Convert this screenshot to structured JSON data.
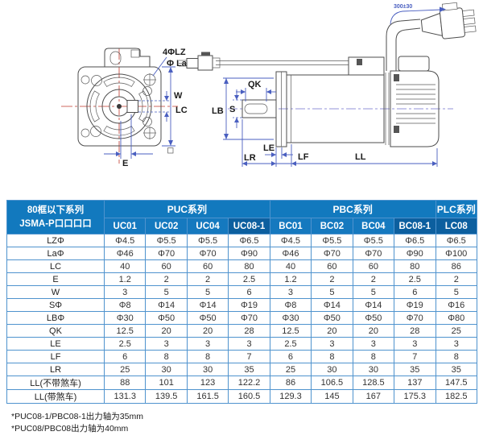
{
  "drawing": {
    "labels": {
      "bolt_holes": "4ΦLZ",
      "la": "Φ La",
      "w": "W",
      "lc": "LC",
      "e": "E",
      "qk": "QK",
      "s": "S",
      "lb": "LB",
      "le": "LE",
      "lr": "LR",
      "lf": "LF",
      "ll": "LL",
      "cable_length": "300±30"
    }
  },
  "table": {
    "corner": {
      "line1": "80框以下系列",
      "line2": "JSMA-P口口口口"
    },
    "groups": [
      {
        "label": "PUC系列",
        "span": 4
      },
      {
        "label": "PBC系列",
        "span": 4
      },
      {
        "label": "PLC系列",
        "span": 1
      }
    ],
    "columns": [
      {
        "id": "UC01",
        "highlight": false
      },
      {
        "id": "UC02",
        "highlight": false
      },
      {
        "id": "UC04",
        "highlight": false
      },
      {
        "id": "UC08-1",
        "highlight": true
      },
      {
        "id": "BC01",
        "highlight": false
      },
      {
        "id": "BC02",
        "highlight": false
      },
      {
        "id": "BC04",
        "highlight": false
      },
      {
        "id": "BC08-1",
        "highlight": true
      },
      {
        "id": "LC08",
        "highlight": true
      }
    ],
    "rows": [
      {
        "label": "LZΦ",
        "values": [
          "Φ4.5",
          "Φ5.5",
          "Φ5.5",
          "Φ6.5",
          "Φ4.5",
          "Φ5.5",
          "Φ5.5",
          "Φ6.5",
          "Φ6.5"
        ]
      },
      {
        "label": "LaΦ",
        "values": [
          "Φ46",
          "Φ70",
          "Φ70",
          "Φ90",
          "Φ46",
          "Φ70",
          "Φ70",
          "Φ90",
          "Φ100"
        ]
      },
      {
        "label": "LC",
        "values": [
          "40",
          "60",
          "60",
          "80",
          "40",
          "60",
          "60",
          "80",
          "86"
        ]
      },
      {
        "label": "E",
        "values": [
          "1.2",
          "2",
          "2",
          "2.5",
          "1.2",
          "2",
          "2",
          "2.5",
          "2"
        ]
      },
      {
        "label": "W",
        "values": [
          "3",
          "5",
          "5",
          "6",
          "3",
          "5",
          "5",
          "6",
          "5"
        ]
      },
      {
        "label": "SΦ",
        "values": [
          "Φ8",
          "Φ14",
          "Φ14",
          "Φ19",
          "Φ8",
          "Φ14",
          "Φ14",
          "Φ19",
          "Φ16"
        ]
      },
      {
        "label": "LBΦ",
        "values": [
          "Φ30",
          "Φ50",
          "Φ50",
          "Φ70",
          "Φ30",
          "Φ50",
          "Φ50",
          "Φ70",
          "Φ80"
        ]
      },
      {
        "label": "QK",
        "values": [
          "12.5",
          "20",
          "20",
          "28",
          "12.5",
          "20",
          "20",
          "28",
          "25"
        ]
      },
      {
        "label": "LE",
        "values": [
          "2.5",
          "3",
          "3",
          "3",
          "2.5",
          "3",
          "3",
          "3",
          "3"
        ]
      },
      {
        "label": "LF",
        "values": [
          "6",
          "8",
          "8",
          "7",
          "6",
          "8",
          "8",
          "7",
          "8"
        ]
      },
      {
        "label": "LR",
        "values": [
          "25",
          "30",
          "30",
          "35",
          "25",
          "30",
          "30",
          "35",
          "35"
        ]
      },
      {
        "label": "LL(不带煞车)",
        "values": [
          "88",
          "101",
          "123",
          "122.2",
          "86",
          "106.5",
          "128.5",
          "137",
          "147.5"
        ]
      },
      {
        "label": "LL(带煞车)",
        "values": [
          "131.3",
          "139.5",
          "161.5",
          "160.5",
          "129.3",
          "145",
          "167",
          "175.3",
          "182.5"
        ]
      }
    ]
  },
  "footnotes": [
    "*PUC08-1/PBC08-1出力轴为35mm",
    "*PUC08/PBC08出力轴为40mm"
  ],
  "colors": {
    "header_blue": "#1279BE",
    "header_blue_dark": "#0C5F9F",
    "grid_blue": "#4F93CE",
    "dimension_blue": "#4A5FC0",
    "centerline_red": "#C0392B"
  }
}
